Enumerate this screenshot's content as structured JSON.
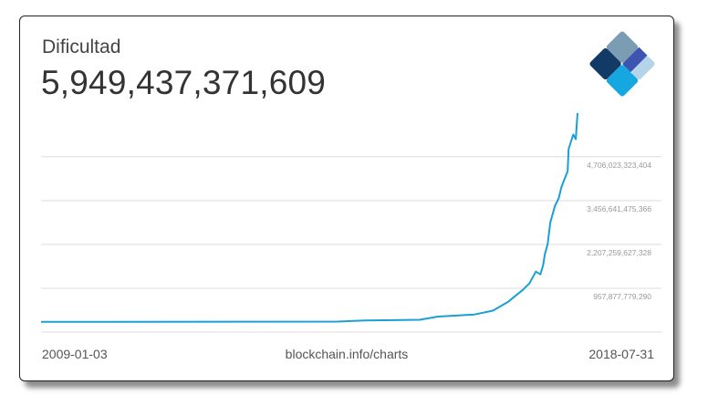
{
  "header": {
    "title": "Dificultad",
    "current_value": "5,949,437,371,609"
  },
  "footer": {
    "start_date": "2009-01-03",
    "source": "blockchain.info/charts",
    "end_date": "2018-07-31"
  },
  "logo": {
    "icon": "blockchain-diamond-logo",
    "colors": [
      "#7b9db3",
      "#123a66",
      "#3d55b0",
      "#b4d4ea",
      "#14a7e0"
    ]
  },
  "chart_data": {
    "type": "line",
    "title": "Dificultad",
    "line_color": "#1a9fd6",
    "grid": true,
    "xlim": [
      "2009-01-03",
      "2018-07-31"
    ],
    "ylim": [
      -291500000000,
      6000000000000
    ],
    "y_ticks": [
      957877779290,
      2207259627328,
      3456641475366,
      4706023323404
    ],
    "y_tick_labels": [
      "957,877,779,290",
      "2,207,259,627,328",
      "3,456,641,475,366",
      "4,706,023,323,404"
    ],
    "points": [
      [
        "2009-01-03",
        1
      ],
      [
        "2014-04-19",
        8000000000
      ],
      [
        "2014-10-15",
        40000000000
      ],
      [
        "2015-10-07",
        60000000000
      ],
      [
        "2016-02-03",
        150000000000
      ],
      [
        "2016-09-28",
        210000000000
      ],
      [
        "2017-01-25",
        320000000000
      ],
      [
        "2017-05-06",
        573000000000
      ],
      [
        "2017-06-11",
        703000000000
      ],
      [
        "2017-08-09",
        911000000000
      ],
      [
        "2017-09-20",
        1093000000000
      ],
      [
        "2017-11-01",
        1432000000000
      ],
      [
        "2017-12-01",
        1354000000000
      ],
      [
        "2017-12-19",
        1614000000000
      ],
      [
        "2017-12-30",
        1926000000000
      ],
      [
        "2018-01-17",
        2213000000000
      ],
      [
        "2018-02-04",
        2837000000000
      ],
      [
        "2018-03-06",
        3306000000000
      ],
      [
        "2018-03-30",
        3514000000000
      ],
      [
        "2018-04-16",
        3826000000000
      ],
      [
        "2018-05-04",
        4035000000000
      ],
      [
        "2018-05-28",
        4295000000000
      ],
      [
        "2018-06-03",
        4920000000000
      ],
      [
        "2018-07-03",
        5336000000000
      ],
      [
        "2018-07-20",
        5206000000000
      ],
      [
        "2018-07-31",
        5949437371609
      ]
    ]
  }
}
